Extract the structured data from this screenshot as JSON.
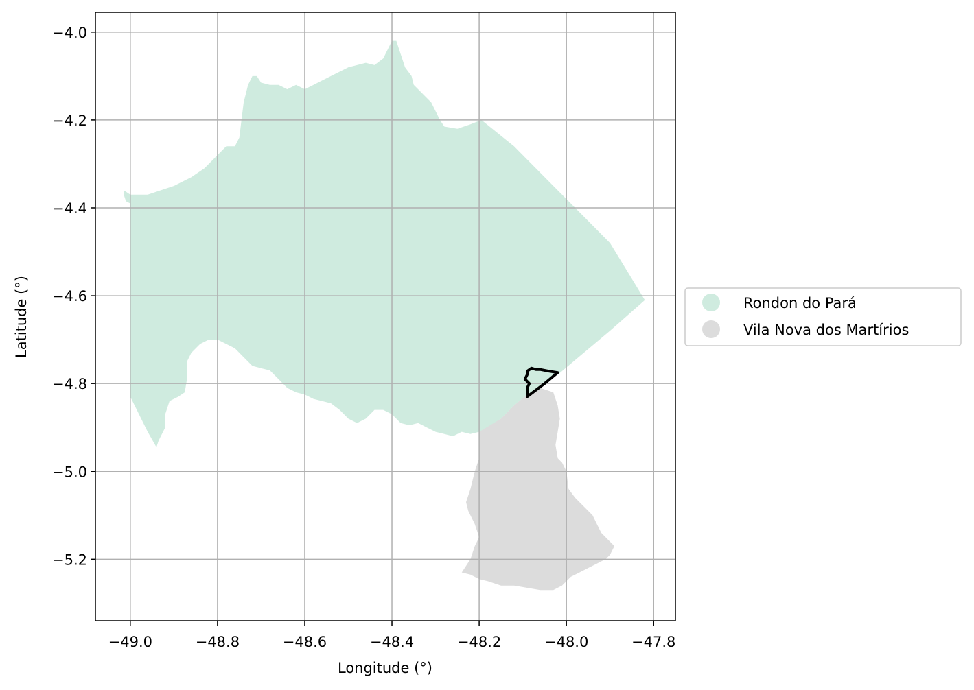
{
  "chart_data": {
    "type": "map",
    "xlabel": "Longitude (°)",
    "ylabel": "Latitude (°)",
    "xlim": [
      -49.08,
      -47.75
    ],
    "ylim": [
      -5.34,
      -3.955
    ],
    "grid": true,
    "x_ticks": [
      -49.0,
      -48.8,
      -48.6,
      -48.4,
      -48.2,
      -48.0,
      -47.8
    ],
    "x_tick_labels": [
      "−49.0",
      "−48.8",
      "−48.6",
      "−48.4",
      "−48.2",
      "−48.0",
      "−47.8"
    ],
    "y_ticks": [
      -4.0,
      -4.2,
      -4.4,
      -4.6,
      -4.8,
      -5.0,
      -5.2
    ],
    "y_tick_labels": [
      "−4.0",
      "−4.2",
      "−4.4",
      "−4.6",
      "−4.8",
      "−5.0",
      "−5.2"
    ],
    "legend_position": "right-center",
    "series": [
      {
        "name": "Rondon do Pará",
        "color": "#cfebdf",
        "polygon": [
          [
            -49.015,
            -4.36
          ],
          [
            -49.0,
            -4.37
          ],
          [
            -48.96,
            -4.37
          ],
          [
            -48.93,
            -4.36
          ],
          [
            -48.9,
            -4.35
          ],
          [
            -48.86,
            -4.33
          ],
          [
            -48.83,
            -4.31
          ],
          [
            -48.8,
            -4.28
          ],
          [
            -48.78,
            -4.26
          ],
          [
            -48.76,
            -4.26
          ],
          [
            -48.75,
            -4.24
          ],
          [
            -48.745,
            -4.2
          ],
          [
            -48.74,
            -4.16
          ],
          [
            -48.735,
            -4.14
          ],
          [
            -48.73,
            -4.12
          ],
          [
            -48.72,
            -4.1
          ],
          [
            -48.71,
            -4.1
          ],
          [
            -48.7,
            -4.115
          ],
          [
            -48.68,
            -4.12
          ],
          [
            -48.66,
            -4.12
          ],
          [
            -48.64,
            -4.13
          ],
          [
            -48.62,
            -4.12
          ],
          [
            -48.6,
            -4.13
          ],
          [
            -48.58,
            -4.12
          ],
          [
            -48.56,
            -4.11
          ],
          [
            -48.54,
            -4.1
          ],
          [
            -48.52,
            -4.09
          ],
          [
            -48.5,
            -4.08
          ],
          [
            -48.48,
            -4.075
          ],
          [
            -48.46,
            -4.07
          ],
          [
            -48.44,
            -4.075
          ],
          [
            -48.42,
            -4.06
          ],
          [
            -48.41,
            -4.04
          ],
          [
            -48.4,
            -4.02
          ],
          [
            -48.39,
            -4.02
          ],
          [
            -48.38,
            -4.05
          ],
          [
            -48.37,
            -4.08
          ],
          [
            -48.355,
            -4.1
          ],
          [
            -48.35,
            -4.12
          ],
          [
            -48.33,
            -4.14
          ],
          [
            -48.31,
            -4.16
          ],
          [
            -48.3,
            -4.18
          ],
          [
            -48.29,
            -4.2
          ],
          [
            -48.28,
            -4.215
          ],
          [
            -48.25,
            -4.22
          ],
          [
            -48.22,
            -4.21
          ],
          [
            -48.195,
            -4.2
          ],
          [
            -48.12,
            -4.26
          ],
          [
            -48.04,
            -4.34
          ],
          [
            -47.96,
            -4.42
          ],
          [
            -47.9,
            -4.48
          ],
          [
            -47.82,
            -4.61
          ],
          [
            -47.9,
            -4.68
          ],
          [
            -47.96,
            -4.73
          ],
          [
            -48.02,
            -4.78
          ],
          [
            -48.04,
            -4.79
          ],
          [
            -48.06,
            -4.81
          ],
          [
            -48.09,
            -4.825
          ],
          [
            -48.12,
            -4.85
          ],
          [
            -48.15,
            -4.88
          ],
          [
            -48.18,
            -4.9
          ],
          [
            -48.2,
            -4.91
          ],
          [
            -48.22,
            -4.915
          ],
          [
            -48.24,
            -4.91
          ],
          [
            -48.26,
            -4.92
          ],
          [
            -48.28,
            -4.915
          ],
          [
            -48.3,
            -4.91
          ],
          [
            -48.32,
            -4.9
          ],
          [
            -48.34,
            -4.89
          ],
          [
            -48.36,
            -4.895
          ],
          [
            -48.38,
            -4.89
          ],
          [
            -48.4,
            -4.87
          ],
          [
            -48.42,
            -4.86
          ],
          [
            -48.44,
            -4.86
          ],
          [
            -48.46,
            -4.88
          ],
          [
            -48.48,
            -4.89
          ],
          [
            -48.5,
            -4.88
          ],
          [
            -48.52,
            -4.86
          ],
          [
            -48.54,
            -4.845
          ],
          [
            -48.56,
            -4.84
          ],
          [
            -48.58,
            -4.835
          ],
          [
            -48.6,
            -4.825
          ],
          [
            -48.62,
            -4.82
          ],
          [
            -48.64,
            -4.81
          ],
          [
            -48.66,
            -4.79
          ],
          [
            -48.68,
            -4.77
          ],
          [
            -48.7,
            -4.765
          ],
          [
            -48.72,
            -4.76
          ],
          [
            -48.74,
            -4.74
          ],
          [
            -48.76,
            -4.72
          ],
          [
            -48.78,
            -4.71
          ],
          [
            -48.8,
            -4.7
          ],
          [
            -48.82,
            -4.7
          ],
          [
            -48.84,
            -4.71
          ],
          [
            -48.86,
            -4.73
          ],
          [
            -48.87,
            -4.75
          ],
          [
            -48.87,
            -4.79
          ],
          [
            -48.875,
            -4.82
          ],
          [
            -48.89,
            -4.83
          ],
          [
            -48.91,
            -4.84
          ],
          [
            -48.92,
            -4.87
          ],
          [
            -48.92,
            -4.9
          ],
          [
            -48.935,
            -4.93
          ],
          [
            -48.94,
            -4.945
          ],
          [
            -48.96,
            -4.91
          ],
          [
            -48.98,
            -4.87
          ],
          [
            -49.0,
            -4.83
          ],
          [
            -49.0,
            -4.6
          ],
          [
            -49.0,
            -4.39
          ],
          [
            -49.01,
            -4.385
          ],
          [
            -49.015,
            -4.37
          ]
        ]
      },
      {
        "name": "Vila Nova dos Martírios",
        "color": "#dcdcdc",
        "polygon": [
          [
            -48.2,
            -4.91
          ],
          [
            -48.15,
            -4.88
          ],
          [
            -48.12,
            -4.85
          ],
          [
            -48.09,
            -4.825
          ],
          [
            -48.06,
            -4.81
          ],
          [
            -48.03,
            -4.82
          ],
          [
            -48.02,
            -4.85
          ],
          [
            -48.015,
            -4.88
          ],
          [
            -48.02,
            -4.91
          ],
          [
            -48.025,
            -4.94
          ],
          [
            -48.02,
            -4.97
          ],
          [
            -48.01,
            -4.98
          ],
          [
            -48.0,
            -5.0
          ],
          [
            -47.995,
            -5.04
          ],
          [
            -47.98,
            -5.06
          ],
          [
            -47.96,
            -5.08
          ],
          [
            -47.94,
            -5.1
          ],
          [
            -47.93,
            -5.12
          ],
          [
            -47.92,
            -5.14
          ],
          [
            -47.9,
            -5.16
          ],
          [
            -47.89,
            -5.17
          ],
          [
            -47.9,
            -5.19
          ],
          [
            -47.91,
            -5.2
          ],
          [
            -47.93,
            -5.21
          ],
          [
            -47.95,
            -5.22
          ],
          [
            -47.97,
            -5.23
          ],
          [
            -47.99,
            -5.24
          ],
          [
            -48.0,
            -5.25
          ],
          [
            -48.01,
            -5.26
          ],
          [
            -48.03,
            -5.27
          ],
          [
            -48.06,
            -5.27
          ],
          [
            -48.09,
            -5.265
          ],
          [
            -48.12,
            -5.26
          ],
          [
            -48.15,
            -5.26
          ],
          [
            -48.18,
            -5.25
          ],
          [
            -48.2,
            -5.245
          ],
          [
            -48.22,
            -5.235
          ],
          [
            -48.24,
            -5.23
          ],
          [
            -48.22,
            -5.2
          ],
          [
            -48.21,
            -5.17
          ],
          [
            -48.2,
            -5.15
          ],
          [
            -48.21,
            -5.12
          ],
          [
            -48.225,
            -5.09
          ],
          [
            -48.23,
            -5.07
          ],
          [
            -48.22,
            -5.04
          ],
          [
            -48.21,
            -5.0
          ],
          [
            -48.2,
            -4.97
          ],
          [
            -48.2,
            -4.93
          ]
        ]
      }
    ],
    "outline_polygon": [
      [
        -48.09,
        -4.83
      ],
      [
        -48.05,
        -4.8
      ],
      [
        -48.02,
        -4.775
      ],
      [
        -48.04,
        -4.772
      ],
      [
        -48.06,
        -4.768
      ],
      [
        -48.07,
        -4.768
      ],
      [
        -48.08,
        -4.765
      ],
      [
        -48.09,
        -4.772
      ],
      [
        -48.09,
        -4.78
      ],
      [
        -48.095,
        -4.79
      ],
      [
        -48.085,
        -4.8
      ],
      [
        -48.09,
        -4.81
      ],
      [
        -48.09,
        -4.83
      ]
    ],
    "outline_color": "#000000"
  }
}
